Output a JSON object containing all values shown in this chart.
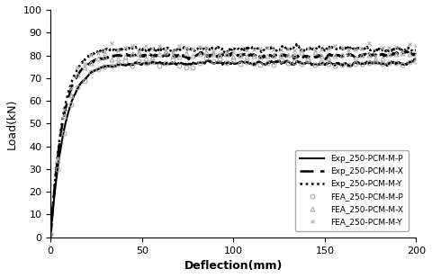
{
  "title": "",
  "xlabel": "Deflection(mm)",
  "ylabel": "Load(kN)",
  "xlim": [
    0,
    200
  ],
  "ylim": [
    0,
    100
  ],
  "xticks": [
    0,
    50,
    100,
    150,
    200
  ],
  "yticks": [
    0,
    10,
    20,
    30,
    40,
    50,
    60,
    70,
    80,
    90,
    100
  ],
  "exp_curves": [
    {
      "label": "Exp_250-PCM-M-P",
      "linestyle": "solid",
      "color": "#000000",
      "lw": 1.5,
      "plateau": 76.5,
      "k": 0.13,
      "seed": 1,
      "noise_line": 0.5,
      "noise_plat": 1.8
    },
    {
      "label": "Exp_250-PCM-M-X",
      "linestyle": "dashed",
      "color": "#000000",
      "lw": 1.8,
      "plateau": 80.0,
      "k": 0.15,
      "seed": 2,
      "noise_line": 0.5,
      "noise_plat": 2.2
    },
    {
      "label": "Exp_250-PCM-M-Y",
      "linestyle": "dotted",
      "color": "#000000",
      "lw": 1.8,
      "plateau": 83.0,
      "k": 0.15,
      "seed": 3,
      "noise_line": 0.5,
      "noise_plat": 2.2
    }
  ],
  "fea_curves": [
    {
      "label": "FEA_250-PCM-M-P",
      "marker": "o",
      "color": "#aaaaaa",
      "plateau": 76.5,
      "k": 0.13,
      "seed": 10,
      "noise": 1.0,
      "n_pts": 55
    },
    {
      "label": "FEA_250-PCM-M-X",
      "marker": "^",
      "color": "#aaaaaa",
      "plateau": 80.0,
      "k": 0.15,
      "seed": 11,
      "noise": 1.0,
      "n_pts": 55
    },
    {
      "label": "FEA_250-PCM-M-Y",
      "marker": "x",
      "color": "#aaaaaa",
      "plateau": 83.0,
      "k": 0.15,
      "seed": 12,
      "noise": 1.0,
      "n_pts": 55
    }
  ],
  "figsize": [
    4.8,
    3.09
  ],
  "dpi": 100
}
